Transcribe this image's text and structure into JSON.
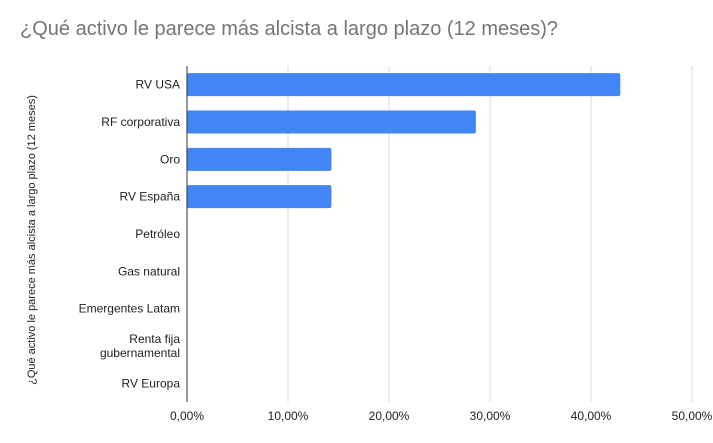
{
  "chart_data": {
    "type": "bar",
    "orientation": "horizontal",
    "title": "¿Qué activo le parece más alcista a largo plazo (12 meses)?",
    "ylabel": "¿Qué activo le parece más alcista a largo plazo (12 meses)",
    "xlabel": "",
    "categories": [
      "RV USA",
      "RF corporativa",
      "Oro",
      "RV España",
      "Petróleo",
      "Gas natural",
      "Emergentes Latam",
      "Renta fija gubernamental",
      "RV Europa"
    ],
    "category_lines": [
      [
        "RV USA"
      ],
      [
        "RF corporativa"
      ],
      [
        "Oro"
      ],
      [
        "RV España"
      ],
      [
        "Petróleo"
      ],
      [
        "Gas natural"
      ],
      [
        "Emergentes Latam"
      ],
      [
        "Renta fija",
        "gubernamental"
      ],
      [
        "RV Europa"
      ]
    ],
    "values": [
      42.9,
      28.6,
      14.3,
      14.3,
      0,
      0,
      0,
      0,
      0
    ],
    "xlim": [
      0,
      50
    ],
    "xticks": [
      0,
      10,
      20,
      30,
      40,
      50
    ],
    "xtick_labels": [
      "0,00%",
      "10,00%",
      "20,00%",
      "30,00%",
      "40,00%",
      "50,00%"
    ],
    "grid": true,
    "legend": "none",
    "colors": {
      "bar": "#4285f4",
      "grid": "#d9d9d9",
      "axis": "#333333",
      "title": "#757575",
      "text": "#222222"
    }
  }
}
